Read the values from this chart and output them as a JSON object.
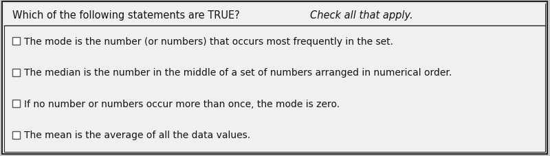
{
  "title_normal": "Which of the following statements are TRUE? ",
  "title_italic": "Check all that apply.",
  "options": [
    "The mode is the number (or numbers) that occurs most frequently in the set.",
    "The median is the number in the middle of a set of numbers arranged in numerical order.",
    "If no number or numbers occur more than once, the mode is zero.",
    "The mean is the average of all the data values."
  ],
  "bg_color": "#c8c8c8",
  "box_color": "#f0f0f0",
  "border_color": "#222222",
  "text_color": "#111111",
  "title_fontsize": 10.5,
  "option_fontsize": 10.0,
  "fig_width": 8.0,
  "fig_height": 2.28,
  "dpi": 100
}
